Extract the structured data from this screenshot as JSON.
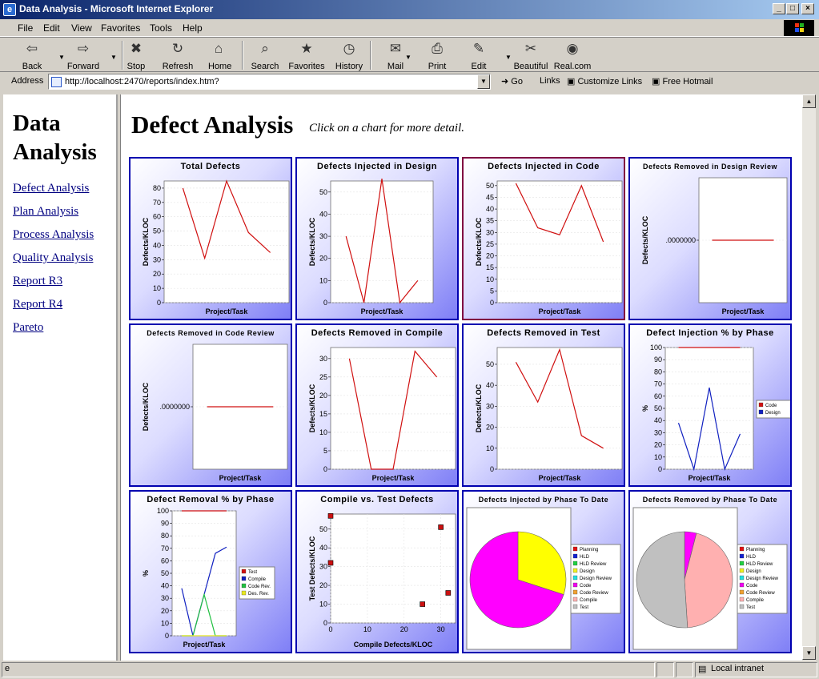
{
  "window": {
    "title": "Data Analysis - Microsoft Internet Explorer"
  },
  "menu": [
    "File",
    "Edit",
    "View",
    "Favorites",
    "Tools",
    "Help"
  ],
  "toolbar": [
    {
      "label": "Back",
      "icon": "back-arrow-icon"
    },
    {
      "label": "Forward",
      "icon": "forward-arrow-icon"
    },
    {
      "label": "Stop",
      "icon": "stop-icon"
    },
    {
      "label": "Refresh",
      "icon": "refresh-icon"
    },
    {
      "label": "Home",
      "icon": "home-icon"
    },
    {
      "label": "Search",
      "icon": "search-icon"
    },
    {
      "label": "Favorites",
      "icon": "favorites-icon"
    },
    {
      "label": "History",
      "icon": "history-icon"
    },
    {
      "label": "Mail",
      "icon": "mail-icon"
    },
    {
      "label": "Print",
      "icon": "print-icon"
    },
    {
      "label": "Edit",
      "icon": "edit-icon"
    },
    {
      "label": "Beautiful",
      "icon": "scissors-icon"
    },
    {
      "label": "Real.com",
      "icon": "real-icon"
    }
  ],
  "address": {
    "label": "Address",
    "url": "http://localhost:2470/reports/index.htm?",
    "go": "Go",
    "links": "Links",
    "customize": "Customize Links",
    "hotmail": "Free Hotmail"
  },
  "nav": {
    "title_line1": "Data",
    "title_line2": "Analysis",
    "links": [
      "Defect Analysis",
      "Plan Analysis",
      "Process Analysis",
      "Quality Analysis",
      "Report R3",
      "Report R4",
      "Pareto"
    ]
  },
  "page": {
    "title": "Defect Analysis",
    "subtitle": "Click on a chart for more detail."
  },
  "status": {
    "zone": "Local intranet"
  },
  "colors": {
    "line_red": "#d01010",
    "line_blue": "#1020c0",
    "line_green": "#20c040",
    "chart_border": "#0000b0",
    "selected_border": "#800040"
  },
  "chart_data": [
    {
      "id": "total-defects",
      "type": "line",
      "title": "Total Defects",
      "ylabel": "Defects/KLOC",
      "xlabel": "Project/Task",
      "ylim": [
        0,
        85
      ],
      "yticks": [
        0,
        10,
        20,
        30,
        40,
        50,
        60,
        70,
        80
      ],
      "series": [
        {
          "color": "#d01010",
          "values": [
            80,
            31,
            85,
            49,
            35
          ]
        }
      ]
    },
    {
      "id": "defects-injected-design",
      "type": "line",
      "title": "Defects Injected in Design",
      "ylabel": "Defects/KLOC",
      "xlabel": "Project/Task",
      "ylim": [
        0,
        55
      ],
      "yticks": [
        0,
        10,
        20,
        30,
        40,
        50
      ],
      "series": [
        {
          "color": "#d01010",
          "values": [
            30,
            0,
            56,
            0,
            10
          ]
        }
      ]
    },
    {
      "id": "defects-injected-code",
      "type": "line",
      "title": "Defects Injected in Code",
      "ylabel": "Defects/KLOC",
      "xlabel": "Project/Task",
      "ylim": [
        0,
        52
      ],
      "yticks": [
        0,
        5,
        10,
        15,
        20,
        25,
        30,
        35,
        40,
        45,
        50
      ],
      "series": [
        {
          "color": "#d01010",
          "values": [
            51,
            32,
            29,
            50,
            26
          ]
        }
      ]
    },
    {
      "id": "defects-removed-design-review",
      "type": "line",
      "title": "Defects Removed in Design Review",
      "ylabel": "Defects/KLOC",
      "xlabel": "Project/Task",
      "ylim": [
        -1,
        1
      ],
      "yticks": [
        0
      ],
      "ytick_labels": [
        ".0000000"
      ],
      "series": [
        {
          "color": "#d01010",
          "values": [
            0,
            0,
            0,
            0,
            0
          ]
        }
      ]
    },
    {
      "id": "defects-removed-code-review",
      "type": "line",
      "title": "Defects Removed in Code Review",
      "ylabel": "Defects/KLOC",
      "xlabel": "Project/Task",
      "ylim": [
        -1,
        1
      ],
      "yticks": [
        0
      ],
      "ytick_labels": [
        ".0000000"
      ],
      "series": [
        {
          "color": "#d01010",
          "values": [
            0,
            0,
            0,
            0,
            0
          ]
        }
      ]
    },
    {
      "id": "defects-removed-compile",
      "type": "line",
      "title": "Defects Removed in Compile",
      "ylabel": "Defects/KLOC",
      "xlabel": "Project/Task",
      "ylim": [
        0,
        33
      ],
      "yticks": [
        0,
        5,
        10,
        15,
        20,
        25,
        30
      ],
      "series": [
        {
          "color": "#d01010",
          "values": [
            30,
            0,
            0,
            32,
            25
          ]
        }
      ]
    },
    {
      "id": "defects-removed-test",
      "type": "line",
      "title": "Defects Removed in Test",
      "ylabel": "Defects/KLOC",
      "xlabel": "Project/Task",
      "ylim": [
        0,
        58
      ],
      "yticks": [
        0,
        10,
        20,
        30,
        40,
        50
      ],
      "series": [
        {
          "color": "#d01010",
          "values": [
            51,
            32,
            57,
            16,
            10
          ]
        }
      ]
    },
    {
      "id": "defect-injection-pct",
      "type": "line",
      "title": "Defect Injection % by Phase",
      "ylabel": "%",
      "xlabel": "Project/Task",
      "ylim": [
        0,
        100
      ],
      "yticks": [
        0,
        10,
        20,
        30,
        40,
        50,
        60,
        70,
        80,
        90,
        100
      ],
      "legend": "right",
      "series": [
        {
          "name": "Code",
          "color": "#d01010",
          "values": [
            100,
            100,
            100,
            100,
            100
          ]
        },
        {
          "name": "Design",
          "color": "#1020c0",
          "values": [
            38,
            0,
            67,
            0,
            29
          ]
        }
      ]
    },
    {
      "id": "defect-removal-pct",
      "type": "line",
      "title": "Defect Removal % by Phase",
      "ylabel": "%",
      "xlabel": "Project/Task",
      "ylim": [
        0,
        100
      ],
      "yticks": [
        0,
        10,
        20,
        30,
        40,
        50,
        60,
        70,
        80,
        90,
        100
      ],
      "legend": "right",
      "series": [
        {
          "name": "Test",
          "color": "#d01010",
          "values": [
            100,
            100,
            100,
            100,
            100
          ]
        },
        {
          "name": "Compile",
          "color": "#1020c0",
          "values": [
            38,
            0,
            33,
            66,
            71
          ]
        },
        {
          "name": "Code Rev.",
          "color": "#20c040",
          "values": [
            0,
            0,
            33,
            0,
            0
          ]
        },
        {
          "name": "Des. Rev.",
          "color": "#e8e820",
          "values": [
            0,
            0,
            0,
            0,
            0
          ]
        }
      ]
    },
    {
      "id": "compile-vs-test",
      "type": "scatter",
      "title": "Compile vs. Test Defects",
      "ylabel": "Test Defects/KLOC",
      "xlabel": "Compile Defects/KLOC",
      "xlim": [
        0,
        34
      ],
      "ylim": [
        0,
        58
      ],
      "xticks": [
        0,
        10,
        20,
        30
      ],
      "yticks": [
        0,
        10,
        20,
        30,
        40,
        50
      ],
      "points": [
        [
          0,
          57
        ],
        [
          0,
          32
        ],
        [
          30,
          51
        ],
        [
          25,
          10
        ],
        [
          32,
          16
        ]
      ]
    },
    {
      "id": "injected-to-date",
      "type": "pie",
      "title": "Defects Injected by Phase To Date",
      "legend": [
        "Planning",
        "HLD",
        "HLD Review",
        "Design",
        "Design Review",
        "Code",
        "Code Review",
        "Compile",
        "Test"
      ],
      "legend_colors": [
        "#e01010",
        "#1020d0",
        "#20d040",
        "#f0f020",
        "#20e0e0",
        "#f000f0",
        "#f0a030",
        "#ffb0b0",
        "#c0c0c0"
      ],
      "slices": [
        {
          "label": "Design",
          "value": 30,
          "color": "#ffff00"
        },
        {
          "label": "Code",
          "value": 70,
          "color": "#ff00ff"
        }
      ]
    },
    {
      "id": "removed-to-date",
      "type": "pie",
      "title": "Defects Removed by Phase To Date",
      "legend": [
        "Planning",
        "HLD",
        "HLD Review",
        "Design",
        "Design Review",
        "Code",
        "Code Review",
        "Compile",
        "Test"
      ],
      "legend_colors": [
        "#e01010",
        "#1020d0",
        "#20d040",
        "#f0f020",
        "#20e0e0",
        "#f000f0",
        "#f0a030",
        "#ffb0b0",
        "#c0c0c0"
      ],
      "slices": [
        {
          "label": "Code",
          "value": 4,
          "color": "#ff00ff"
        },
        {
          "label": "Compile",
          "value": 45,
          "color": "#ffb0b0"
        },
        {
          "label": "Test",
          "value": 51,
          "color": "#c0c0c0"
        }
      ]
    }
  ]
}
